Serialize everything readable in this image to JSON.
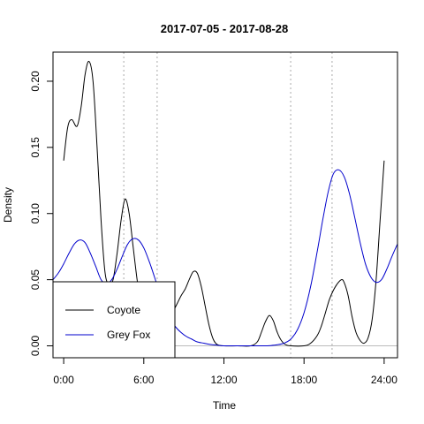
{
  "chart_data": {
    "type": "line",
    "title": "2017-07-05 - 2017-08-28",
    "xlabel": "Time",
    "ylabel": "Density",
    "xlim": [
      -0.8,
      25.0
    ],
    "ylim": [
      -0.009,
      0.222
    ],
    "x_ticks": [
      {
        "value": 0,
        "label": "0:00"
      },
      {
        "value": 6,
        "label": "6:00"
      },
      {
        "value": 12,
        "label": "12:00"
      },
      {
        "value": 18,
        "label": "18:00"
      },
      {
        "value": 24,
        "label": "24:00"
      }
    ],
    "y_ticks": [
      {
        "value": 0.0,
        "label": "0.00"
      },
      {
        "value": 0.05,
        "label": "0.05"
      },
      {
        "value": 0.1,
        "label": "0.10"
      },
      {
        "value": 0.15,
        "label": "0.15"
      },
      {
        "value": 0.2,
        "label": "0.20"
      }
    ],
    "vertical_reference_lines": [
      4.5,
      7.0,
      17.0,
      20.1
    ],
    "baseline": 0,
    "legend": {
      "placement": "bottom-left"
    },
    "series": [
      {
        "name": "Coyote",
        "color": "#000000",
        "x": [
          0,
          0.3,
          0.6,
          1.0,
          1.3,
          1.6,
          1.9,
          2.2,
          2.5,
          2.8,
          3.1,
          3.4,
          3.7,
          4.0,
          4.3,
          4.6,
          4.9,
          5.2,
          5.5,
          5.8,
          6.1,
          6.4,
          6.7,
          7.0,
          7.3,
          7.6,
          7.9,
          8.2,
          8.5,
          8.8,
          9.1,
          9.4,
          9.7,
          10.0,
          10.3,
          10.6,
          10.9,
          11.2,
          11.5,
          12.0,
          13.0,
          14.0,
          14.5,
          14.8,
          15.1,
          15.4,
          15.7,
          16.0,
          16.3,
          16.6,
          17.0,
          18.0,
          18.5,
          19.0,
          19.3,
          19.6,
          19.9,
          20.2,
          20.5,
          20.8,
          21.0,
          21.3,
          21.6,
          21.9,
          22.2,
          22.5,
          22.8,
          23.1,
          23.4,
          23.7,
          24.0
        ],
        "y": [
          0.14,
          0.165,
          0.171,
          0.166,
          0.18,
          0.205,
          0.215,
          0.2,
          0.15,
          0.095,
          0.055,
          0.047,
          0.05,
          0.07,
          0.095,
          0.111,
          0.1,
          0.075,
          0.05,
          0.03,
          0.018,
          0.01,
          0.006,
          0.005,
          0.008,
          0.014,
          0.02,
          0.026,
          0.032,
          0.038,
          0.043,
          0.05,
          0.056,
          0.055,
          0.045,
          0.03,
          0.015,
          0.005,
          0.001,
          0.0,
          0.0,
          0.0,
          0.003,
          0.01,
          0.018,
          0.023,
          0.019,
          0.01,
          0.004,
          0.001,
          0.0,
          0.0,
          0.002,
          0.008,
          0.015,
          0.025,
          0.035,
          0.042,
          0.047,
          0.05,
          0.048,
          0.038,
          0.022,
          0.01,
          0.004,
          0.002,
          0.006,
          0.02,
          0.05,
          0.095,
          0.14
        ]
      },
      {
        "name": "Grey Fox",
        "color": "#0000cc",
        "x": [
          -0.8,
          -0.4,
          0,
          0.4,
          0.8,
          1.2,
          1.6,
          2.0,
          2.4,
          2.8,
          3.2,
          3.6,
          4.0,
          4.4,
          4.8,
          5.2,
          5.6,
          6.0,
          6.4,
          6.8,
          7.2,
          7.6,
          8.0,
          8.4,
          8.8,
          9.2,
          9.6,
          10.0,
          10.5,
          11.0,
          11.5,
          12.0,
          13.0,
          14.0,
          15.0,
          15.5,
          16.0,
          16.5,
          17.0,
          17.5,
          18.0,
          18.5,
          19.0,
          19.4,
          19.8,
          20.2,
          20.6,
          21.0,
          21.4,
          21.8,
          22.2,
          22.6,
          23.0,
          23.4,
          23.8,
          24.2,
          24.6,
          25.0
        ],
        "y": [
          0.05,
          0.055,
          0.062,
          0.07,
          0.077,
          0.08,
          0.078,
          0.07,
          0.06,
          0.05,
          0.047,
          0.05,
          0.058,
          0.068,
          0.077,
          0.081,
          0.08,
          0.074,
          0.064,
          0.052,
          0.04,
          0.029,
          0.02,
          0.014,
          0.01,
          0.007,
          0.005,
          0.003,
          0.002,
          0.001,
          0.0005,
          0.0,
          0.0,
          0.0,
          0.0,
          0.0002,
          0.0008,
          0.002,
          0.005,
          0.012,
          0.025,
          0.045,
          0.072,
          0.095,
          0.116,
          0.13,
          0.133,
          0.128,
          0.115,
          0.097,
          0.078,
          0.062,
          0.052,
          0.048,
          0.05,
          0.058,
          0.068,
          0.077
        ]
      }
    ]
  }
}
